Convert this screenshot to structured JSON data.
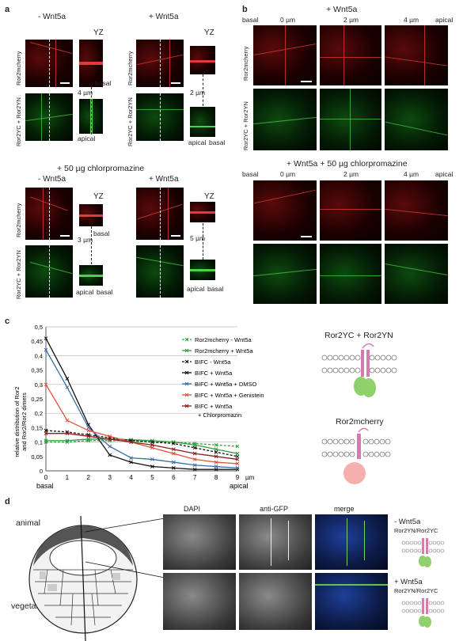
{
  "panels": {
    "a": {
      "letter": "a",
      "top_left": {
        "title": "- Wnt5a",
        "yz": "YZ",
        "row1": "Ror2mcherry",
        "row2": "Ror2YC + Ror2YN",
        "depth": "4 µm",
        "apical": "apical",
        "basal": "basal"
      },
      "top_right": {
        "title": "+ Wnt5a",
        "yz": "YZ",
        "row1": "Ror2mcherry",
        "row2": "Ror2YC + Ror2YN",
        "depth": "2 µm",
        "apical": "apical",
        "basal": "basal"
      },
      "chlor_title": "+ 50 µg chlorpromazine",
      "bottom_left": {
        "title": "- Wnt5a",
        "yz": "YZ",
        "row1": "Ror2mcherry",
        "row2": "Ror2YC + Ror2YN",
        "depth": "3 µm",
        "apical": "apical",
        "basal": "basal"
      },
      "bottom_right": {
        "title": "+ Wnt5a",
        "yz": "YZ",
        "depth": "5 µm",
        "apical": "apical",
        "basal": "basal"
      }
    },
    "b": {
      "letter": "b",
      "top": {
        "title": "+ Wnt5a",
        "basal": "basal",
        "apical": "apical",
        "depths": [
          "0 µm",
          "2 µm",
          "4 µm"
        ],
        "row1": "Ror2mcherry",
        "row2": "Ror2YC + Ror2YN"
      },
      "bottom": {
        "title": "+ Wnt5a + 50 µg chlorpromazine",
        "basal": "basal",
        "apical": "apical",
        "depths": [
          "0 µm",
          "2 µm",
          "4 µm"
        ]
      }
    },
    "c": {
      "letter": "c",
      "right_label_1": "Ror2YC + Ror2YN",
      "right_label_2": "Ror2mcherry"
    },
    "d": {
      "letter": "d",
      "animal": "animal",
      "vegetal": "vegetal",
      "col_labels": [
        "DAPI",
        "anti-GFP",
        "merge"
      ],
      "row1_cond": "- Wnt5a",
      "row1_sub": "Ror2YN/Ror2YC",
      "row2_cond": "+ Wnt5a",
      "row2_sub": "Ror2YN/Ror2YC"
    }
  },
  "chart_data": {
    "type": "line",
    "title": "",
    "xlabel": "µm",
    "ylabel": "relative distribution of Ror2 and Ror2/Ror2 dimers",
    "x": [
      0,
      1,
      2,
      3,
      4,
      5,
      6,
      7,
      8,
      9
    ],
    "x_tick_labels": [
      "0",
      "1",
      "2",
      "3",
      "4",
      "5",
      "6",
      "7",
      "8",
      "9"
    ],
    "x_end_labels": {
      "start": "basal",
      "end": "apical"
    },
    "ylim": [
      0,
      0.5
    ],
    "y_ticks": [
      "0",
      "0,05",
      "0,1",
      "0,15",
      "0,2",
      "0,25",
      "0,3",
      "0,35",
      "0,4",
      "0,45",
      "0,5"
    ],
    "y_tick_values": [
      0,
      0.05,
      0.1,
      0.15,
      0.2,
      0.25,
      0.3,
      0.35,
      0.4,
      0.45,
      0.5
    ],
    "grid": "horizontal",
    "legend_position": "top-right",
    "series": [
      {
        "name": "Ror2mcherry - Wnt5a",
        "color": "#2e9e3c",
        "dashed": true,
        "values": [
          0.1,
          0.1,
          0.105,
          0.105,
          0.105,
          0.1,
          0.1,
          0.095,
          0.09,
          0.085
        ]
      },
      {
        "name": "Ror2mcherry + Wnt5a",
        "color": "#2e9e3c",
        "dashed": false,
        "values": [
          0.105,
          0.105,
          0.11,
          0.11,
          0.108,
          0.105,
          0.1,
          0.09,
          0.075,
          0.06
        ]
      },
      {
        "name": "BIFC - Wnt5a",
        "color": "#111111",
        "dashed": true,
        "values": [
          0.14,
          0.135,
          0.125,
          0.115,
          0.105,
          0.1,
          0.095,
          0.08,
          0.065,
          0.05
        ]
      },
      {
        "name": "BIFC + Wnt5a",
        "color": "#111111",
        "dashed": false,
        "values": [
          0.46,
          0.32,
          0.16,
          0.055,
          0.03,
          0.015,
          0.01,
          0.005,
          0.005,
          0.005
        ]
      },
      {
        "name": "BIFC + Wnt5a + DMSO",
        "color": "#3a6fa8",
        "dashed": false,
        "values": [
          0.42,
          0.29,
          0.15,
          0.085,
          0.045,
          0.04,
          0.03,
          0.02,
          0.015,
          0.01
        ]
      },
      {
        "name": "BIFC + Wnt5a + Genistein",
        "color": "#e0513a",
        "dashed": false,
        "values": [
          0.3,
          0.175,
          0.14,
          0.12,
          0.1,
          0.08,
          0.06,
          0.04,
          0.03,
          0.025
        ]
      },
      {
        "name": "BIFC + Wnt5a + Chlorpromazin",
        "color": "#8b1a1a",
        "dashed": false,
        "values": [
          0.13,
          0.13,
          0.12,
          0.11,
          0.1,
          0.09,
          0.075,
          0.06,
          0.05,
          0.04
        ]
      }
    ]
  }
}
